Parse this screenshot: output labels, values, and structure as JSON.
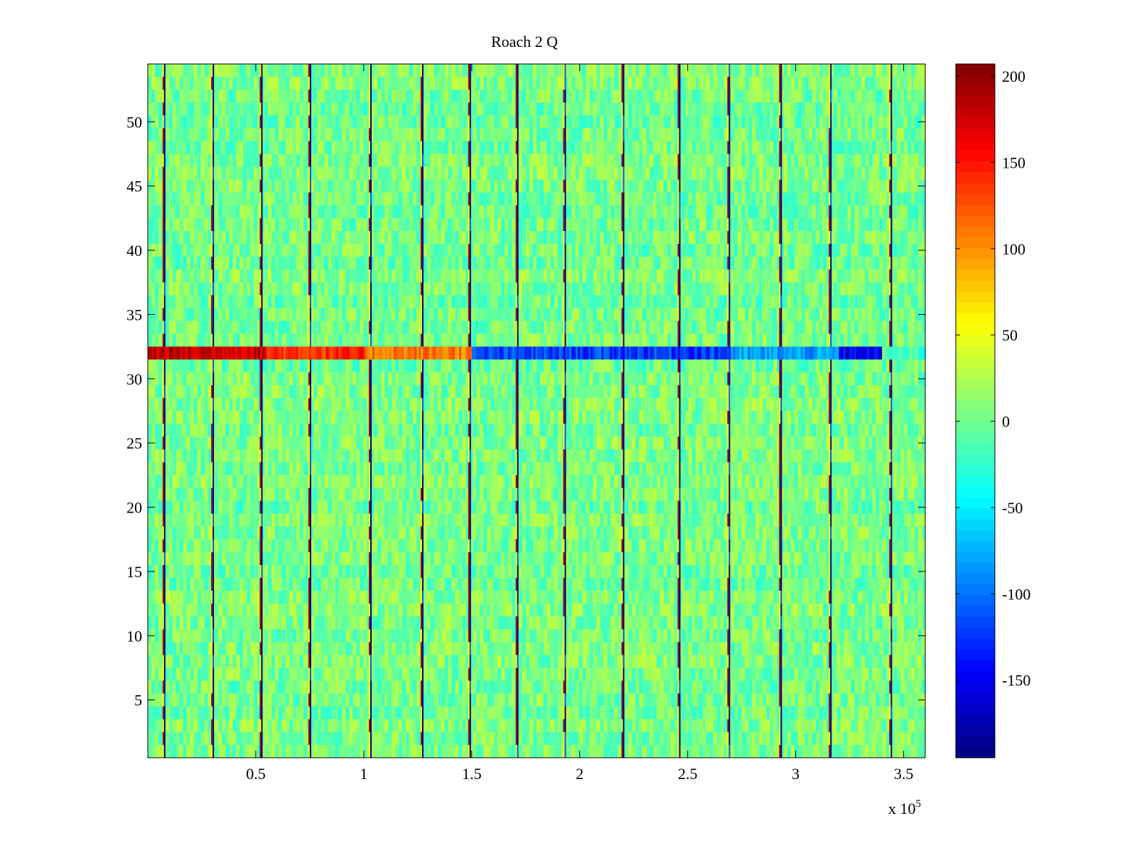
{
  "chart_data": {
    "type": "heatmap",
    "title": "Roach 2 Q",
    "xlabel": "",
    "ylabel": "",
    "x_multiplier_label": "x 10",
    "x_multiplier_exponent": "5",
    "xlim": [
      0,
      3.6
    ],
    "ylim": [
      0.5,
      54.5
    ],
    "x_tick_values": [
      0.5,
      1,
      1.5,
      2,
      2.5,
      3,
      3.5
    ],
    "x_tick_labels": [
      "0.5",
      "1",
      "1.5",
      "2",
      "2.5",
      "3",
      "3.5"
    ],
    "y_tick_values": [
      5,
      10,
      15,
      20,
      25,
      30,
      35,
      40,
      45,
      50
    ],
    "y_tick_labels": [
      "5",
      "10",
      "15",
      "20",
      "25",
      "30",
      "35",
      "40",
      "45",
      "50"
    ],
    "rows": 54,
    "colormap": "jet",
    "clim": [
      -195,
      207
    ],
    "colorbar_tick_values": [
      200,
      150,
      100,
      50,
      0,
      -50,
      -100,
      -150
    ],
    "colorbar_tick_labels": [
      "200",
      "150",
      "100",
      "50",
      "0",
      "-50",
      "-100",
      "-150"
    ],
    "background_value_range": [
      -25,
      30
    ],
    "spike_lines_x": [
      0.075,
      0.3,
      0.525,
      0.75,
      1.03,
      1.27,
      1.49,
      1.71,
      1.93,
      2.2,
      2.46,
      2.69,
      2.93,
      3.16,
      3.44
    ],
    "highlighted_row": {
      "row": 32,
      "segments": [
        {
          "x_start": 0.0,
          "x_end": 0.55,
          "value": 180
        },
        {
          "x_start": 0.55,
          "x_end": 1.0,
          "value": 140
        },
        {
          "x_start": 1.0,
          "x_end": 1.5,
          "value": 110
        },
        {
          "x_start": 1.5,
          "x_end": 2.7,
          "value": -120
        },
        {
          "x_start": 2.7,
          "x_end": 3.2,
          "value": -85
        },
        {
          "x_start": 3.2,
          "x_end": 3.4,
          "value": -150
        },
        {
          "x_start": 3.4,
          "x_end": 3.6,
          "value": -20
        }
      ]
    }
  }
}
